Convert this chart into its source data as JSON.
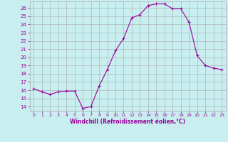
{
  "x": [
    0,
    1,
    2,
    3,
    4,
    5,
    6,
    7,
    8,
    9,
    10,
    11,
    12,
    13,
    14,
    15,
    16,
    17,
    18,
    19,
    20,
    21,
    22,
    23
  ],
  "y": [
    16.2,
    15.8,
    15.5,
    15.8,
    15.9,
    15.9,
    13.8,
    14.0,
    16.5,
    18.5,
    20.8,
    22.3,
    24.8,
    25.2,
    26.3,
    26.5,
    26.5,
    25.9,
    25.9,
    24.3,
    20.2,
    19.0,
    18.7,
    18.5
  ],
  "line_color": "#990099",
  "marker": "+",
  "marker_size": 3,
  "marker_lw": 0.8,
  "bg_color": "#c8eef0",
  "grid_color": "#aaaaaa",
  "xlabel": "Windchill (Refroidissement éolien,°C)",
  "xlabel_color": "#990099",
  "tick_color": "#990099",
  "ylim": [
    13.5,
    26.8
  ],
  "xlim": [
    -0.5,
    23.5
  ],
  "yticks": [
    14,
    15,
    16,
    17,
    18,
    19,
    20,
    21,
    22,
    23,
    24,
    25,
    26
  ],
  "xticks": [
    0,
    1,
    2,
    3,
    4,
    5,
    6,
    7,
    8,
    9,
    10,
    11,
    12,
    13,
    14,
    15,
    16,
    17,
    18,
    19,
    20,
    21,
    22,
    23
  ]
}
